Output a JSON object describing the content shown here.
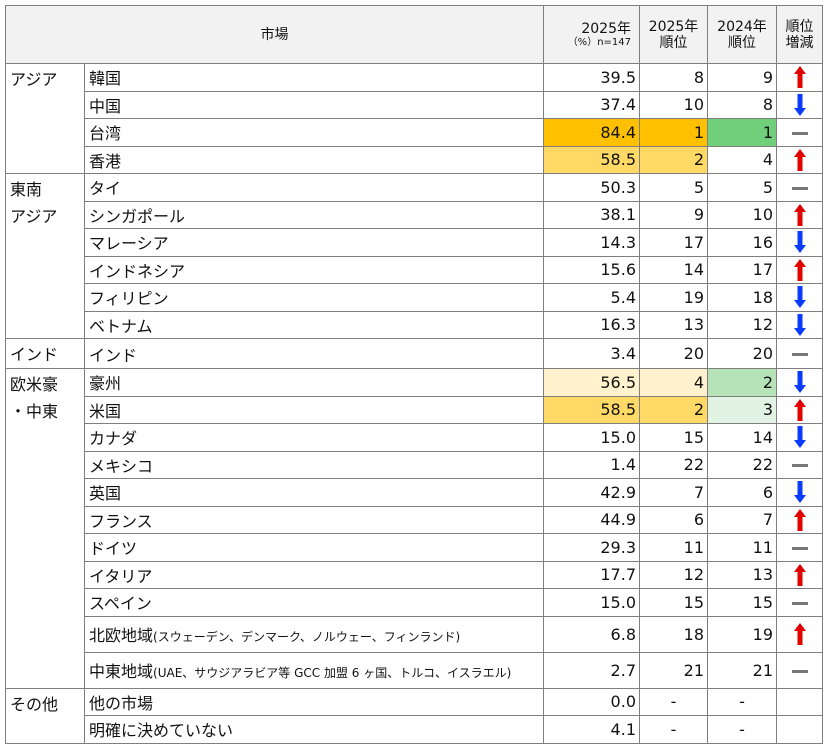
{
  "header": {
    "market": "市場",
    "y2025": "2025年",
    "y2025_note": "（%）n=147",
    "rank2025_line1": "2025年",
    "rank2025_line2": "順位",
    "rank2024_line1": "2024年",
    "rank2024_line2": "順位",
    "change_line1": "順位",
    "change_line2": "増減"
  },
  "colors": {
    "rank1_orange": "#ffc000",
    "rank2_gold": "#ffd966",
    "light_yellow": "#fff2cc",
    "green_strong": "#6fcf7a",
    "green_mid": "#b6e3b8",
    "green_light": "#e2f3e3",
    "up_arrow": "#e00000",
    "down_arrow": "#0a3cff",
    "flat_bar": "#777777"
  },
  "groups": [
    {
      "label": "アジア",
      "rows": [
        {
          "market": "韓国",
          "value": "39.5",
          "rank2025": "8",
          "rank2024": "9",
          "change": "up"
        },
        {
          "market": "中国",
          "value": "37.4",
          "rank2025": "10",
          "rank2024": "8",
          "change": "down"
        },
        {
          "market": "台湾",
          "value": "84.4",
          "rank2025": "1",
          "rank2024": "1",
          "change": "flat"
        },
        {
          "market": "香港",
          "value": "58.5",
          "rank2025": "2",
          "rank2024": "4",
          "change": "up"
        }
      ]
    },
    {
      "label": "東南\nアジア",
      "rows": [
        {
          "market": "タイ",
          "value": "50.3",
          "rank2025": "5",
          "rank2024": "5",
          "change": "flat"
        },
        {
          "market": "シンガポール",
          "value": "38.1",
          "rank2025": "9",
          "rank2024": "10",
          "change": "up"
        },
        {
          "market": "マレーシア",
          "value": "14.3",
          "rank2025": "17",
          "rank2024": "16",
          "change": "down"
        },
        {
          "market": "インドネシア",
          "value": "15.6",
          "rank2025": "14",
          "rank2024": "17",
          "change": "up"
        },
        {
          "market": "フィリピン",
          "value": "5.4",
          "rank2025": "19",
          "rank2024": "18",
          "change": "down"
        },
        {
          "market": "ベトナム",
          "value": "16.3",
          "rank2025": "13",
          "rank2024": "12",
          "change": "down"
        }
      ]
    },
    {
      "label": "インド",
      "rows": [
        {
          "market": "インド",
          "value": "3.4",
          "rank2025": "20",
          "rank2024": "20",
          "change": "flat"
        }
      ]
    },
    {
      "label": "欧米豪\n・中東",
      "rows": [
        {
          "market": "豪州",
          "value": "56.5",
          "rank2025": "4",
          "rank2024": "2",
          "change": "down"
        },
        {
          "market": "米国",
          "value": "58.5",
          "rank2025": "2",
          "rank2024": "3",
          "change": "up"
        },
        {
          "market": "カナダ",
          "value": "15.0",
          "rank2025": "15",
          "rank2024": "14",
          "change": "down"
        },
        {
          "market": "メキシコ",
          "value": "1.4",
          "rank2025": "22",
          "rank2024": "22",
          "change": "flat"
        },
        {
          "market": "英国",
          "value": "42.9",
          "rank2025": "7",
          "rank2024": "6",
          "change": "down"
        },
        {
          "market": "フランス",
          "value": "44.9",
          "rank2025": "6",
          "rank2024": "7",
          "change": "up"
        },
        {
          "market": "ドイツ",
          "value": "29.3",
          "rank2025": "11",
          "rank2024": "11",
          "change": "flat"
        },
        {
          "market": "イタリア",
          "value": "17.7",
          "rank2025": "12",
          "rank2024": "13",
          "change": "up"
        },
        {
          "market": "スペイン",
          "value": "15.0",
          "rank2025": "15",
          "rank2024": "15",
          "change": "flat"
        },
        {
          "market": "北欧地域",
          "note": "(スウェーデン、デンマーク、ノルウェー、フィンランド)",
          "value": "6.8",
          "rank2025": "18",
          "rank2024": "19",
          "change": "up"
        },
        {
          "market": "中東地域",
          "note": "(UAE、サウジアラビア等 GCC 加盟 6 ヶ国、トルコ、イスラエル)",
          "value": "2.7",
          "rank2025": "21",
          "rank2024": "21",
          "change": "flat"
        }
      ]
    },
    {
      "label": "その他",
      "rows": [
        {
          "market": "他の市場",
          "value": "0.0",
          "rank2025": "-",
          "rank2024": "-",
          "change": "none"
        },
        {
          "market": "明確に決めていない",
          "value": "4.1",
          "rank2025": "-",
          "rank2024": "-",
          "change": "none"
        }
      ]
    }
  ]
}
